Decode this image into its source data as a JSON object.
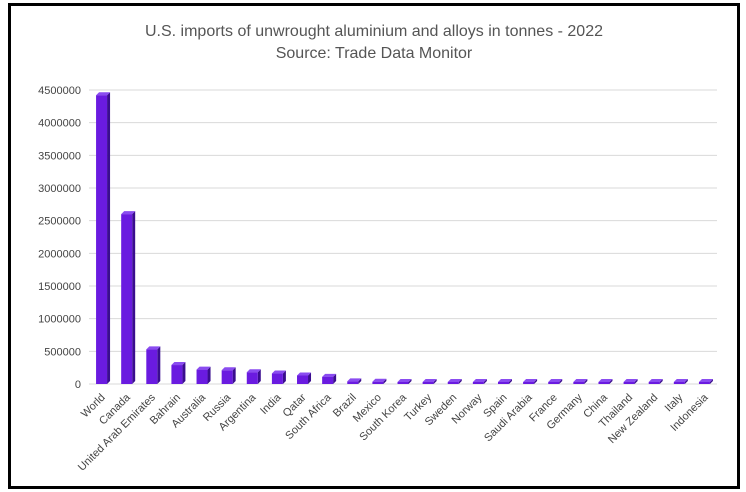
{
  "chart_data": {
    "type": "bar",
    "title": "U.S. imports of unwrought aluminium and alloys in tonnes - 2022",
    "subtitle": "Source: Trade Data Monitor",
    "xlabel": "",
    "ylabel": "",
    "ylim": [
      0,
      4500000
    ],
    "yticks": [
      "0",
      "500000",
      "1000000",
      "1500000",
      "2000000",
      "2500000",
      "3000000",
      "3500000",
      "4000000",
      "4500000"
    ],
    "grid": true,
    "categories": [
      "World",
      "Canada",
      "United Arab Emirates",
      "Bahrain",
      "Australia",
      "Russia",
      "Argentina",
      "India",
      "Qatar",
      "South Africa",
      "Brazil",
      "Mexico",
      "South Korea",
      "Turkey",
      "Sweden",
      "Norway",
      "Spain",
      "Saudi Arabia",
      "France",
      "Germany",
      "China",
      "Thailand",
      "New Zealand",
      "Italy",
      "Indonesia"
    ],
    "values": [
      4420000,
      2600000,
      530000,
      290000,
      220000,
      210000,
      180000,
      160000,
      130000,
      110000,
      40000,
      35000,
      30000,
      25000,
      22000,
      20000,
      18000,
      16000,
      14000,
      12000,
      10000,
      9000,
      8000,
      7000,
      6000
    ],
    "colors": {
      "bar": "#6a1be0",
      "bar_side": "#3a0d8f",
      "bar_top": "#8a4cf0",
      "grid": "#d9d9d9",
      "text": "#444444"
    }
  }
}
